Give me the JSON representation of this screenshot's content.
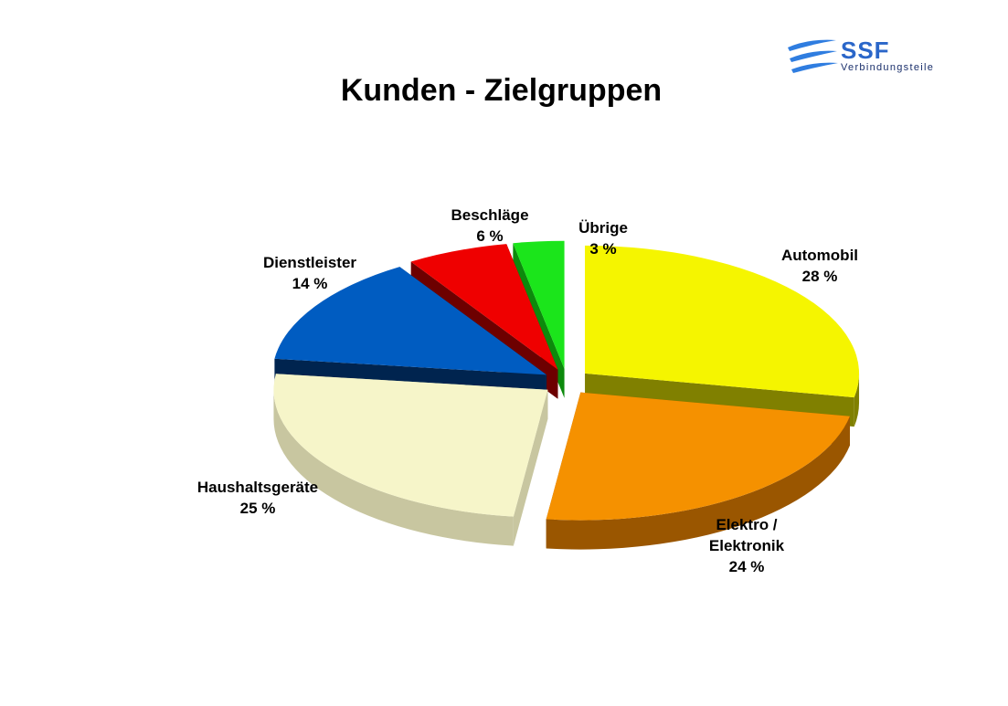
{
  "logo": {
    "name": "SSF",
    "subtitle": "Verbindungsteile"
  },
  "chart_data": {
    "type": "pie",
    "title": "Kunden - Zielgruppen",
    "unit": "%",
    "slices": [
      {
        "label": "Automobil",
        "value": 28,
        "color": "#f5f500",
        "side": "#808000"
      },
      {
        "label": "Elektro / Elektronik",
        "value": 24,
        "color": "#f59100",
        "side": "#9a5600"
      },
      {
        "label": "Haushaltsgeräte",
        "value": 25,
        "color": "#f6f5c9",
        "side": "#c8c6a0"
      },
      {
        "label": "Dienstleister",
        "value": 14,
        "color": "#005cc1",
        "side": "#00244f"
      },
      {
        "label": "Beschläge",
        "value": 6,
        "color": "#ef0000",
        "side": "#6d0000"
      },
      {
        "label": "Übrige",
        "value": 3,
        "color": "#1be51b",
        "side": "#0c8a0c"
      }
    ],
    "value_labels": [
      "28 %",
      "24 %",
      "25 %",
      "14 %",
      "6 %",
      "3 %"
    ],
    "exploded": true,
    "three_d": true
  }
}
